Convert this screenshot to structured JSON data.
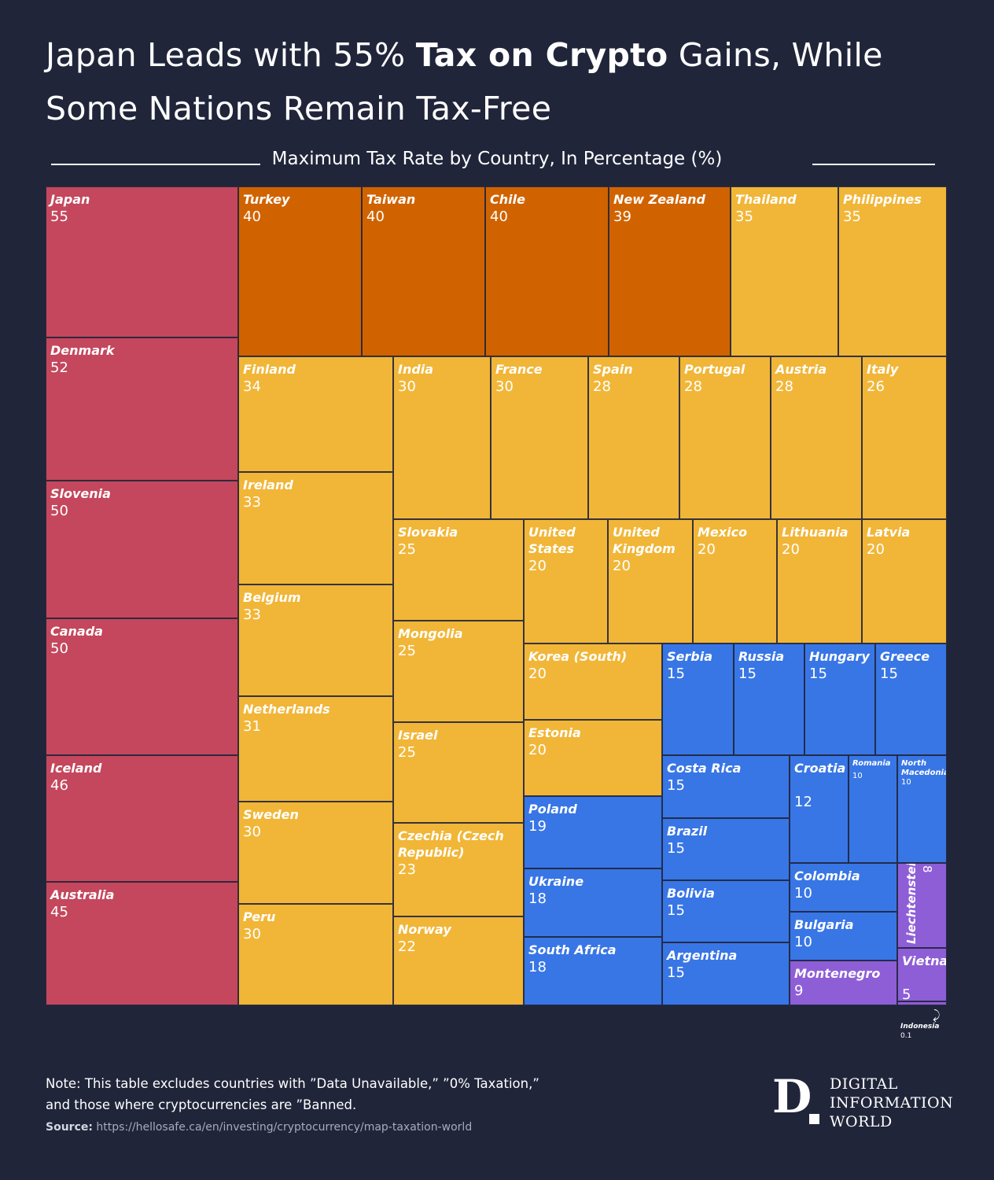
{
  "header": {
    "title_part1": "Japan Leads with 55%",
    "title_bold": "Tax on Crypto",
    "title_part2": "Gains, While Some Nations Remain Tax-Free",
    "subtitle": "Maximum Tax Rate by Country, In Percentage (%)"
  },
  "colors": {
    "tier_45_plus": "#c4475d",
    "tier_36_44": "#d06300",
    "tier_20_35": "#f1b638",
    "tier_10_19": "#3876e5",
    "tier_below_10": "#8e5ed7",
    "background": "#20253a"
  },
  "chart_data": {
    "type": "treemap",
    "title": "Japan Leads with 55% Tax on Crypto Gains, While Some Nations Remain Tax-Free",
    "subtitle": "Maximum Tax Rate by Country, In Percentage (%)",
    "items": [
      {
        "name": "Japan",
        "value": 55,
        "value_label": "55"
      },
      {
        "name": "Denmark",
        "value": 52,
        "value_label": "52"
      },
      {
        "name": "Slovenia",
        "value": 50,
        "value_label": "50"
      },
      {
        "name": "Canada",
        "value": 50,
        "value_label": "50"
      },
      {
        "name": "Iceland",
        "value": 46,
        "value_label": "46"
      },
      {
        "name": "Australia",
        "value": 45,
        "value_label": "45"
      },
      {
        "name": "Turkey",
        "value": 40,
        "value_label": "40"
      },
      {
        "name": "Taiwan",
        "value": 40,
        "value_label": "40"
      },
      {
        "name": "Chile",
        "value": 40,
        "value_label": "40"
      },
      {
        "name": "New Zealand",
        "value": 39,
        "value_label": "39"
      },
      {
        "name": "Thailand",
        "value": 35,
        "value_label": "35"
      },
      {
        "name": "Philippines",
        "value": 35,
        "value_label": "35"
      },
      {
        "name": "Finland",
        "value": 34,
        "value_label": "34"
      },
      {
        "name": "Ireland",
        "value": 33,
        "value_label": "33"
      },
      {
        "name": "Belgium",
        "value": 33,
        "value_label": "33"
      },
      {
        "name": "Netherlands",
        "value": 31,
        "value_label": "31"
      },
      {
        "name": "Sweden",
        "value": 30,
        "value_label": "30"
      },
      {
        "name": "Peru",
        "value": 30,
        "value_label": "30"
      },
      {
        "name": "India",
        "value": 30,
        "value_label": "30"
      },
      {
        "name": "France",
        "value": 30,
        "value_label": "30"
      },
      {
        "name": "Spain",
        "value": 28,
        "value_label": "28"
      },
      {
        "name": "Portugal",
        "value": 28,
        "value_label": "28"
      },
      {
        "name": "Austria",
        "value": 28,
        "value_label": "28"
      },
      {
        "name": "Italy",
        "value": 26,
        "value_label": "26"
      },
      {
        "name": "Slovakia",
        "value": 25,
        "value_label": "25"
      },
      {
        "name": "Mongolia",
        "value": 25,
        "value_label": "25"
      },
      {
        "name": "Israel",
        "value": 25,
        "value_label": "25"
      },
      {
        "name": "Czechia (Czech Republic)",
        "value": 23,
        "value_label": "23"
      },
      {
        "name": "Norway",
        "value": 22,
        "value_label": "22"
      },
      {
        "name": "United States",
        "value": 20,
        "value_label": "20"
      },
      {
        "name": "United Kingdom",
        "value": 20,
        "value_label": "20"
      },
      {
        "name": "Mexico",
        "value": 20,
        "value_label": "20"
      },
      {
        "name": "Lithuania",
        "value": 20,
        "value_label": "20"
      },
      {
        "name": "Latvia",
        "value": 20,
        "value_label": "20"
      },
      {
        "name": "Korea (South)",
        "value": 20,
        "value_label": "20"
      },
      {
        "name": "Estonia",
        "value": 20,
        "value_label": "20"
      },
      {
        "name": "Poland",
        "value": 19,
        "value_label": "19"
      },
      {
        "name": "Ukraine",
        "value": 18,
        "value_label": "18"
      },
      {
        "name": "South Africa",
        "value": 18,
        "value_label": "18"
      },
      {
        "name": "Serbia",
        "value": 15,
        "value_label": "15"
      },
      {
        "name": "Russia",
        "value": 15,
        "value_label": "15"
      },
      {
        "name": "Hungary",
        "value": 15,
        "value_label": "15"
      },
      {
        "name": "Greece",
        "value": 15,
        "value_label": "15"
      },
      {
        "name": "Costa Rica",
        "value": 15,
        "value_label": "15"
      },
      {
        "name": "Brazil",
        "value": 15,
        "value_label": "15"
      },
      {
        "name": "Bolivia",
        "value": 15,
        "value_label": "15"
      },
      {
        "name": "Argentina",
        "value": 15,
        "value_label": "15"
      },
      {
        "name": "Croatia",
        "value": 12,
        "value_label": "12"
      },
      {
        "name": "Romania",
        "value": 10,
        "value_label": "10"
      },
      {
        "name": "North Macedonia",
        "value": 10,
        "value_label": "10"
      },
      {
        "name": "Colombia",
        "value": 10,
        "value_label": "10"
      },
      {
        "name": "Bulgaria",
        "value": 10,
        "value_label": "10"
      },
      {
        "name": "Liechtenstein",
        "value": 8,
        "value_label": "8"
      },
      {
        "name": "Montenegro",
        "value": 9,
        "value_label": "9"
      },
      {
        "name": "Vietnam",
        "value": 5,
        "value_label": "5"
      },
      {
        "name": "Indonesia",
        "value": 0.1,
        "value_label": "0.1"
      }
    ]
  },
  "footer": {
    "note_line1": "Note: This table excludes countries with ”Data Unavailable,” ”0% Taxation,”",
    "note_line2": "and those where cryptocurrencies are ”Banned.",
    "source_label": "Source:",
    "source_url": "https://hellosafe.ca/en/investing/cryptocurrency/map-taxation-world",
    "logo_letter": "D",
    "logo_line1": "DIGITAL",
    "logo_line2": "INFORMATION",
    "logo_line3": "WORLD"
  }
}
